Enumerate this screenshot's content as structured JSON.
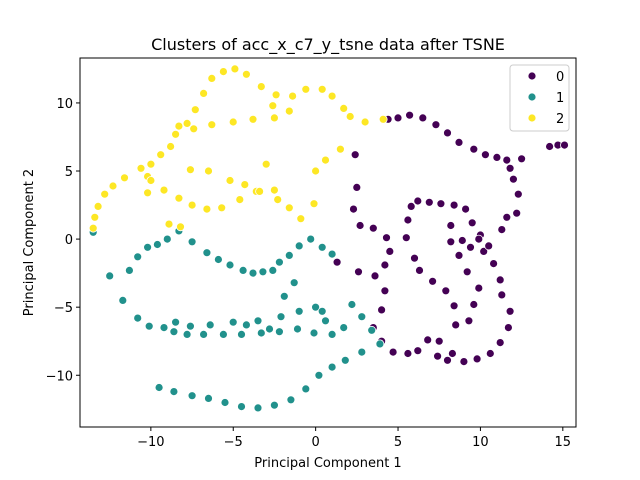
{
  "chart_data": {
    "type": "scatter",
    "title": "Clusters of acc_x_c7_y_tsne data after TSNE",
    "xlabel": "Principal Component 1",
    "ylabel": "Principal Component 2",
    "xlim": [
      -14.3,
      15.8
    ],
    "ylim": [
      -13.8,
      13.3
    ],
    "xticks": [
      -10,
      -5,
      0,
      5,
      10,
      15
    ],
    "yticks": [
      -10,
      -5,
      0,
      5,
      10
    ],
    "xtick_labels": [
      "−10",
      "−5",
      "0",
      "5",
      "10",
      "15"
    ],
    "ytick_labels": [
      "−10",
      "−5",
      "0",
      "5",
      "10"
    ],
    "grid": false,
    "legend_position": "top-right",
    "series": [
      {
        "name": "0",
        "color": "#440154",
        "points": [
          [
            2.4,
            6.2
          ],
          [
            2.5,
            3.8
          ],
          [
            2.3,
            2.2
          ],
          [
            2.7,
            1.0
          ],
          [
            3.5,
            0.8
          ],
          [
            4.3,
            0.1
          ],
          [
            4.5,
            -0.9
          ],
          [
            4.2,
            -1.9
          ],
          [
            3.6,
            -2.7
          ],
          [
            2.6,
            -2.4
          ],
          [
            1.3,
            -1.7
          ],
          [
            4.2,
            -3.8
          ],
          [
            4.0,
            -5.2
          ],
          [
            3.5,
            -6.5
          ],
          [
            4.0,
            -7.5
          ],
          [
            4.7,
            -8.3
          ],
          [
            5.6,
            -8.4
          ],
          [
            6.2,
            -8.2
          ],
          [
            6.8,
            -7.4
          ],
          [
            7.5,
            -7.5
          ],
          [
            8.3,
            -8.4
          ],
          [
            8.0,
            -8.9
          ],
          [
            7.4,
            -8.6
          ],
          [
            9.0,
            -9.0
          ],
          [
            9.8,
            -8.8
          ],
          [
            10.6,
            -8.4
          ],
          [
            11.2,
            -7.6
          ],
          [
            11.7,
            -6.5
          ],
          [
            11.8,
            -5.3
          ],
          [
            11.3,
            -4.1
          ],
          [
            11.2,
            -3.0
          ],
          [
            10.8,
            -1.8
          ],
          [
            10.2,
            -0.9
          ],
          [
            10.0,
            0.3
          ],
          [
            9.5,
            1.2
          ],
          [
            9.1,
            2.2
          ],
          [
            8.4,
            2.5
          ],
          [
            7.6,
            2.6
          ],
          [
            6.9,
            2.7
          ],
          [
            6.2,
            2.8
          ],
          [
            5.8,
            2.4
          ],
          [
            5.6,
            1.4
          ],
          [
            5.5,
            0.1
          ],
          [
            6.0,
            -1.4
          ],
          [
            6.3,
            -2.3
          ],
          [
            7.1,
            -3.1
          ],
          [
            7.9,
            -3.8
          ],
          [
            8.4,
            -4.9
          ],
          [
            8.5,
            -6.3
          ],
          [
            9.3,
            -6.0
          ],
          [
            9.6,
            -4.8
          ],
          [
            9.9,
            -3.6
          ],
          [
            9.2,
            -2.4
          ],
          [
            8.7,
            -1.2
          ],
          [
            8.2,
            -0.2
          ],
          [
            8.2,
            1.0
          ],
          [
            8.9,
            -0.1
          ],
          [
            9.4,
            -0.6
          ],
          [
            9.9,
            0.0
          ],
          [
            10.5,
            -0.5
          ],
          [
            11.3,
            0.7
          ],
          [
            11.6,
            1.6
          ],
          [
            12.2,
            1.9
          ],
          [
            12.3,
            3.3
          ],
          [
            12.0,
            4.4
          ],
          [
            11.8,
            5.2
          ],
          [
            11.6,
            5.8
          ],
          [
            11.0,
            6.0
          ],
          [
            10.3,
            6.2
          ],
          [
            9.6,
            6.6
          ],
          [
            8.7,
            7.1
          ],
          [
            8.0,
            7.8
          ],
          [
            7.3,
            8.4
          ],
          [
            6.5,
            8.9
          ],
          [
            5.7,
            9.1
          ],
          [
            5.0,
            8.9
          ],
          [
            4.4,
            8.8
          ],
          [
            12.5,
            5.9
          ],
          [
            14.2,
            6.8
          ],
          [
            14.7,
            6.9
          ],
          [
            15.1,
            6.9
          ]
        ]
      },
      {
        "name": "1",
        "color": "#21918c",
        "points": [
          [
            -13.5,
            0.5
          ],
          [
            -12.5,
            -2.7
          ],
          [
            -11.3,
            -2.3
          ],
          [
            -10.8,
            -1.3
          ],
          [
            -10.2,
            -0.6
          ],
          [
            -9.6,
            -0.4
          ],
          [
            -9.0,
            0.0
          ],
          [
            -8.3,
            0.6
          ],
          [
            -7.5,
            -0.2
          ],
          [
            -6.6,
            -1.0
          ],
          [
            -5.9,
            -1.5
          ],
          [
            -5.2,
            -1.9
          ],
          [
            -4.4,
            -2.3
          ],
          [
            -3.8,
            -2.5
          ],
          [
            -3.2,
            -2.4
          ],
          [
            -2.6,
            -2.3
          ],
          [
            -2.2,
            -1.7
          ],
          [
            -1.6,
            -1.2
          ],
          [
            -1.0,
            -0.5
          ],
          [
            -0.3,
            0.0
          ],
          [
            0.4,
            -0.6
          ],
          [
            1.0,
            -1.1
          ],
          [
            -11.7,
            -4.5
          ],
          [
            -10.8,
            -5.8
          ],
          [
            -10.1,
            -6.4
          ],
          [
            -9.2,
            -6.5
          ],
          [
            -8.6,
            -6.8
          ],
          [
            -7.8,
            -7.0
          ],
          [
            -6.8,
            -7.0
          ],
          [
            -5.6,
            -7.0
          ],
          [
            -4.5,
            -7.0
          ],
          [
            -3.3,
            -6.9
          ],
          [
            -2.2,
            -6.8
          ],
          [
            -1.1,
            -6.6
          ],
          [
            -0.1,
            -6.9
          ],
          [
            1.0,
            -7.0
          ],
          [
            -6.4,
            -6.3
          ],
          [
            -5.0,
            -6.1
          ],
          [
            -3.5,
            -6.0
          ],
          [
            -2.1,
            -5.7
          ],
          [
            -1.0,
            -5.3
          ],
          [
            0.0,
            -5.0
          ],
          [
            -8.5,
            -6.1
          ],
          [
            -7.6,
            -6.4
          ],
          [
            -4.2,
            -6.3
          ],
          [
            -2.8,
            -6.6
          ],
          [
            0.6,
            -6.0
          ],
          [
            1.7,
            -6.5
          ],
          [
            2.8,
            -5.7
          ],
          [
            3.4,
            -6.7
          ],
          [
            3.9,
            -7.7
          ],
          [
            2.8,
            -8.3
          ],
          [
            1.8,
            -8.9
          ],
          [
            1.0,
            -9.4
          ],
          [
            0.2,
            -10.0
          ],
          [
            -0.6,
            -11.0
          ],
          [
            -1.5,
            -11.8
          ],
          [
            -2.5,
            -12.2
          ],
          [
            -3.5,
            -12.4
          ],
          [
            -4.5,
            -12.3
          ],
          [
            -5.5,
            -12.0
          ],
          [
            -6.5,
            -11.7
          ],
          [
            -7.5,
            -11.5
          ],
          [
            -8.6,
            -11.2
          ],
          [
            -9.5,
            -10.9
          ],
          [
            -1.3,
            -3.2
          ],
          [
            -1.9,
            -4.2
          ],
          [
            0.4,
            -5.3
          ],
          [
            2.2,
            -4.8
          ]
        ]
      },
      {
        "name": "2",
        "color": "#fde725",
        "points": [
          [
            -13.5,
            0.8
          ],
          [
            -13.4,
            1.6
          ],
          [
            -13.2,
            2.4
          ],
          [
            -12.8,
            3.3
          ],
          [
            -12.3,
            3.9
          ],
          [
            -11.6,
            4.5
          ],
          [
            -10.6,
            5.2
          ],
          [
            -10.2,
            4.6
          ],
          [
            -10.0,
            5.5
          ],
          [
            -9.4,
            6.2
          ],
          [
            -8.8,
            6.8
          ],
          [
            -8.5,
            7.7
          ],
          [
            -8.3,
            8.3
          ],
          [
            -7.8,
            8.5
          ],
          [
            -7.3,
            9.5
          ],
          [
            -6.8,
            10.7
          ],
          [
            -6.3,
            11.8
          ],
          [
            -5.6,
            12.3
          ],
          [
            -4.9,
            12.5
          ],
          [
            -4.2,
            12.1
          ],
          [
            -3.3,
            11.2
          ],
          [
            -2.4,
            10.6
          ],
          [
            -1.4,
            10.5
          ],
          [
            -0.6,
            11.0
          ],
          [
            0.4,
            11.0
          ],
          [
            1.0,
            10.5
          ],
          [
            1.7,
            9.6
          ],
          [
            2.1,
            9.0
          ],
          [
            3.0,
            8.6
          ],
          [
            4.1,
            8.8
          ],
          [
            -7.4,
            8.1
          ],
          [
            -6.3,
            8.4
          ],
          [
            -5.0,
            8.6
          ],
          [
            -3.8,
            8.8
          ],
          [
            -2.5,
            8.9
          ],
          [
            -1.6,
            9.4
          ],
          [
            -10.0,
            4.3
          ],
          [
            -9.2,
            3.6
          ],
          [
            -8.3,
            3.0
          ],
          [
            -7.5,
            2.5
          ],
          [
            -6.6,
            2.2
          ],
          [
            -5.7,
            2.3
          ],
          [
            -4.6,
            2.9
          ],
          [
            -3.6,
            3.5
          ],
          [
            -2.5,
            3.6
          ],
          [
            -1.6,
            2.3
          ],
          [
            -0.9,
            1.5
          ],
          [
            -0.1,
            2.6
          ],
          [
            0.0,
            5.0
          ],
          [
            0.6,
            5.8
          ],
          [
            1.5,
            6.6
          ],
          [
            -7.6,
            5.1
          ],
          [
            -6.5,
            5.0
          ],
          [
            -5.2,
            4.3
          ],
          [
            -4.3,
            4.0
          ],
          [
            -3.4,
            3.5
          ],
          [
            -2.3,
            2.9
          ],
          [
            -8.2,
            0.9
          ],
          [
            -8.9,
            1.1
          ],
          [
            -10.2,
            3.4
          ],
          [
            -3.0,
            5.5
          ],
          [
            -2.6,
            9.8
          ]
        ]
      }
    ]
  }
}
